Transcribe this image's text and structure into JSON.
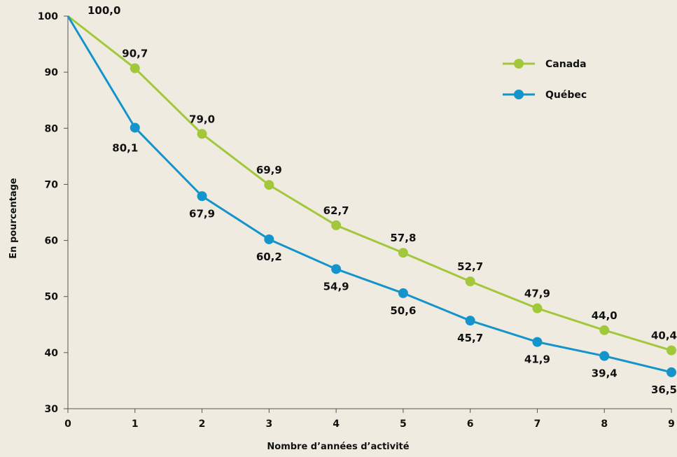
{
  "chart_data": {
    "type": "line",
    "title": "",
    "xlabel": "Nombre d’années d’activité",
    "ylabel": "En pourcentage",
    "x": [
      0,
      1,
      2,
      3,
      4,
      5,
      6,
      7,
      8,
      9
    ],
    "xlim": [
      0,
      9
    ],
    "ylim": [
      30,
      100
    ],
    "yticks": [
      30,
      40,
      50,
      60,
      70,
      80,
      90,
      100
    ],
    "grid": false,
    "legend_position": "top-right",
    "series": [
      {
        "name": "Canada",
        "color": "#a3c73a",
        "values": [
          100,
          90.7,
          79.0,
          69.9,
          62.7,
          57.8,
          52.7,
          47.9,
          44.0,
          40.4
        ],
        "labels": [
          "100,0",
          "90,7",
          "79,0",
          "69,9",
          "62,7",
          "57,8",
          "52,7",
          "47,9",
          "44,0",
          "40,4"
        ],
        "label_position": "above"
      },
      {
        "name": "Québec",
        "color": "#1594cc",
        "values": [
          100,
          80.1,
          67.9,
          60.2,
          54.9,
          50.6,
          45.7,
          41.9,
          39.4,
          36.5
        ],
        "labels": [
          null,
          "80,1",
          "67,9",
          "60,2",
          "54,9",
          "50,6",
          "45,7",
          "41,9",
          "39,4",
          "36,5"
        ],
        "label_position": "below"
      }
    ]
  }
}
